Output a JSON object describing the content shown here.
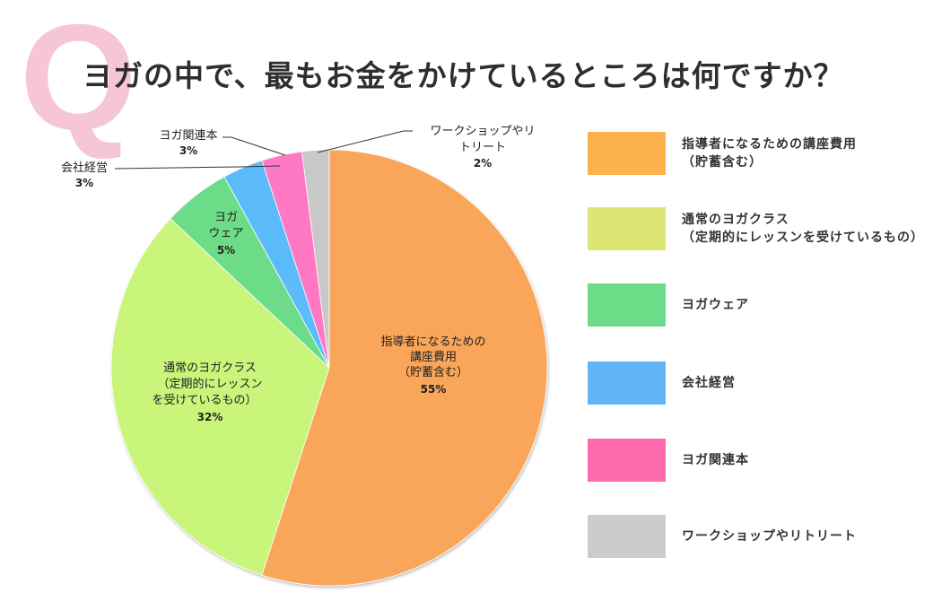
{
  "header": {
    "q_mark": "Q",
    "title": "ヨガの中で、最もお金をかけているところは何ですか？"
  },
  "pie_labels": {
    "instructor": {
      "line1": "指導者になるための",
      "line2": "講座費用",
      "line3": "（貯蓄含む）",
      "pct": "55%"
    },
    "classes": {
      "line1": "通常のヨガクラス",
      "line2": "（定期的にレッスン",
      "line3": "を受けているもの）",
      "pct": "32%"
    },
    "wear": {
      "line1": "ヨガ",
      "line2": "ウェア",
      "pct": "5%"
    },
    "business": {
      "line1": "会社経営",
      "pct": "3%"
    },
    "books": {
      "line1": "ヨガ関連本",
      "pct": "3%"
    },
    "workshop": {
      "line1": "ワークショップやリ",
      "line2": "トリート",
      "pct": "2%"
    }
  },
  "legend": {
    "items": [
      {
        "line1": "指導者になるための講座費用",
        "line2": "（貯蓄含む）",
        "color": "#fbb24c"
      },
      {
        "line1": "通常のヨガクラス",
        "line2": "（定期的にレッスンを受けているもの）",
        "color": "#dde575"
      },
      {
        "line1": "ヨガウェア",
        "color": "#6ddc89"
      },
      {
        "line1": "会社経営",
        "color": "#64b5f6"
      },
      {
        "line1": "ヨガ関連本",
        "color": "#ff69ae"
      },
      {
        "line1": "ワークショップやリトリート",
        "color": "#cccccc"
      }
    ]
  },
  "chart_data": {
    "type": "pie",
    "title": "ヨガの中で、最もお金をかけているところは何ですか？",
    "categories": [
      "指導者になるための講座費用（貯蓄含む）",
      "通常のヨガクラス（定期的にレッスンを受けているもの）",
      "ヨガウェア",
      "会社経営",
      "ヨガ関連本",
      "ワークショップやリトリート"
    ],
    "values": [
      55,
      32,
      5,
      3,
      3,
      2
    ],
    "unit": "%",
    "colors": [
      "#f9a65a",
      "#c8f57a",
      "#6ddc89",
      "#5bbcfb",
      "#ff78c4",
      "#c8c8c8"
    ],
    "start_angle": "12 o'clock",
    "direction": "clockwise",
    "legend_position": "right"
  }
}
